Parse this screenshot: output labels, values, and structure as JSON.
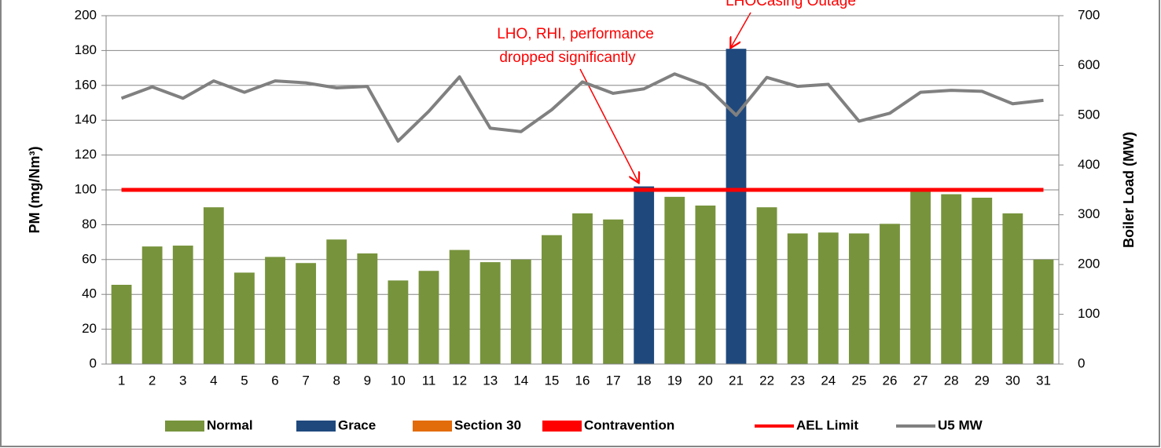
{
  "chart_data": {
    "type": "bar",
    "categories": [
      1,
      2,
      3,
      4,
      5,
      6,
      7,
      8,
      9,
      10,
      11,
      12,
      13,
      14,
      15,
      16,
      17,
      18,
      19,
      20,
      21,
      22,
      23,
      24,
      25,
      26,
      27,
      28,
      29,
      30,
      31
    ],
    "series": [
      {
        "name": "Normal",
        "kind": "bar",
        "color": "#77933c",
        "values": [
          45.5,
          67.5,
          68,
          90,
          52.5,
          61.5,
          58,
          71.5,
          63.5,
          48,
          53.5,
          65.5,
          58.5,
          60,
          74,
          86.5,
          83,
          null,
          96,
          91,
          null,
          90,
          75,
          75.5,
          75,
          80.5,
          101,
          97.5,
          95.5,
          86.5,
          60
        ]
      },
      {
        "name": "Grace",
        "kind": "bar",
        "color": "#1f497d",
        "values": [
          null,
          null,
          null,
          null,
          null,
          null,
          null,
          null,
          null,
          null,
          null,
          null,
          null,
          null,
          null,
          null,
          null,
          102,
          null,
          null,
          181,
          null,
          null,
          null,
          null,
          null,
          null,
          null,
          null,
          null,
          null
        ]
      },
      {
        "name": "Section 30",
        "kind": "bar",
        "color": "#e36c0a",
        "values": [
          null,
          null,
          null,
          null,
          null,
          null,
          null,
          null,
          null,
          null,
          null,
          null,
          null,
          null,
          null,
          null,
          null,
          null,
          null,
          null,
          null,
          null,
          null,
          null,
          null,
          null,
          null,
          null,
          null,
          null,
          null
        ]
      },
      {
        "name": "Contravention",
        "kind": "bar",
        "color": "#ff0000",
        "values": [
          null,
          null,
          null,
          null,
          null,
          null,
          null,
          null,
          null,
          null,
          null,
          null,
          null,
          null,
          null,
          null,
          null,
          null,
          null,
          null,
          null,
          null,
          null,
          null,
          null,
          null,
          null,
          null,
          null,
          null,
          null
        ]
      },
      {
        "name": "AEL Limit",
        "kind": "line",
        "color": "#ff0000",
        "values": [
          100,
          100,
          100,
          100,
          100,
          100,
          100,
          100,
          100,
          100,
          100,
          100,
          100,
          100,
          100,
          100,
          100,
          100,
          100,
          100,
          100,
          100,
          100,
          100,
          100,
          100,
          100,
          100,
          100,
          100,
          100
        ]
      },
      {
        "name": "U5 MW",
        "kind": "line",
        "axis": "y2",
        "color": "#808080",
        "values": [
          534,
          557,
          534,
          569,
          546,
          569,
          565,
          555,
          558,
          448,
          508,
          577,
          474,
          467,
          511,
          567,
          544,
          553,
          583,
          560,
          500,
          576,
          558,
          562,
          488,
          504,
          546,
          550,
          548,
          523,
          530
        ]
      }
    ],
    "y_label": "PM (mg/Nm³)",
    "y2_label": "Boiler Load (MW)",
    "ylim": [
      0,
      200
    ],
    "yticks": [
      0,
      20,
      40,
      60,
      80,
      100,
      120,
      140,
      160,
      180,
      200
    ],
    "y2lim": [
      0,
      700
    ],
    "y2ticks": [
      0,
      100,
      200,
      300,
      400,
      500,
      600,
      700
    ],
    "grid": true,
    "legend": "bottom",
    "annotations": [
      {
        "lines": [
          "LHO, RHI, performance",
          "dropped significantly"
        ]
      },
      {
        "lines": [
          "LHOCasing Outage"
        ]
      }
    ]
  }
}
